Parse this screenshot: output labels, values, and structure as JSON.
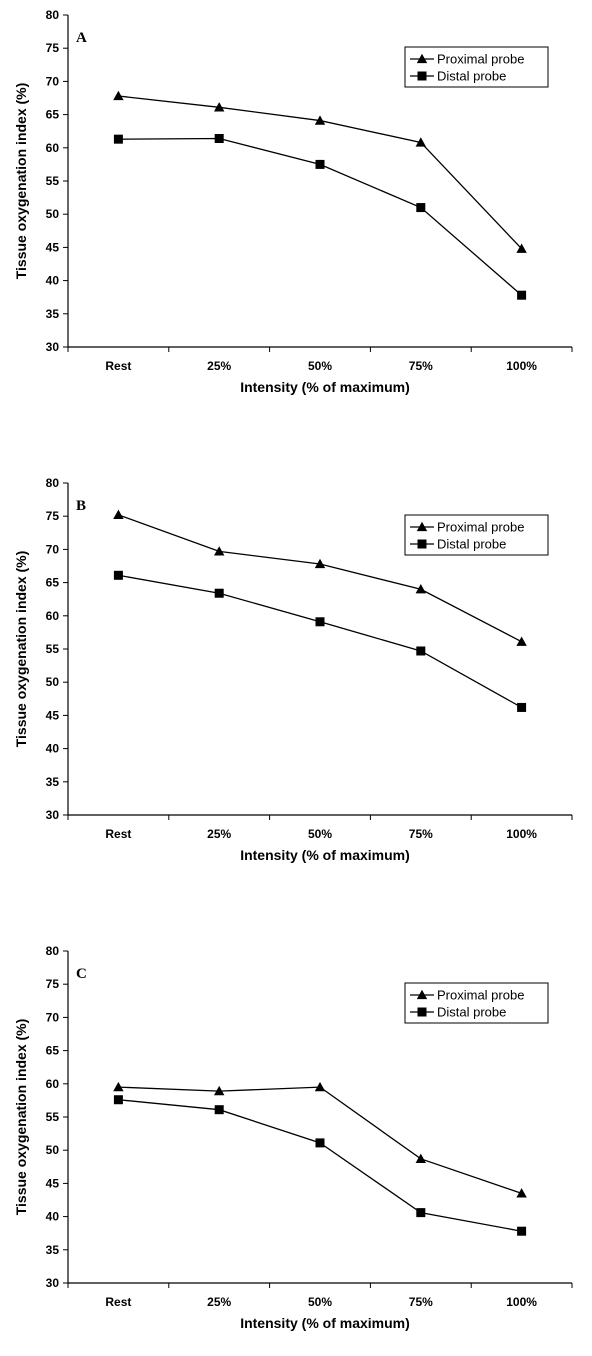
{
  "chart_data": [
    {
      "type": "line",
      "panel_label": "A",
      "categories": [
        "Rest",
        "25%",
        "50%",
        "75%",
        "100%"
      ],
      "series": [
        {
          "name": "Proximal probe",
          "marker": "triangle",
          "values": [
            67.8,
            66.1,
            64.1,
            60.8,
            44.8
          ]
        },
        {
          "name": "Distal probe",
          "marker": "square",
          "values": [
            61.3,
            61.4,
            57.5,
            51.0,
            37.8
          ]
        }
      ],
      "xlabel": "Intensity (% of maximum)",
      "ylabel": "Tissue oxygenation index (%)",
      "ylim": [
        30,
        80
      ],
      "yticks": [
        30,
        35,
        40,
        45,
        50,
        55,
        60,
        65,
        70,
        75,
        80
      ],
      "grid": false,
      "legend": "top-right"
    },
    {
      "type": "line",
      "panel_label": "B",
      "categories": [
        "Rest",
        "25%",
        "50%",
        "75%",
        "100%"
      ],
      "series": [
        {
          "name": "Proximal probe",
          "marker": "triangle",
          "values": [
            75.2,
            69.7,
            67.8,
            64.0,
            56.1
          ]
        },
        {
          "name": "Distal probe",
          "marker": "square",
          "values": [
            66.1,
            63.4,
            59.1,
            54.7,
            46.2
          ]
        }
      ],
      "xlabel": "Intensity (% of maximum)",
      "ylabel": "Tissue oxygenation index (%)",
      "ylim": [
        30,
        80
      ],
      "yticks": [
        30,
        35,
        40,
        45,
        50,
        55,
        60,
        65,
        70,
        75,
        80
      ],
      "grid": false,
      "legend": "top-right"
    },
    {
      "type": "line",
      "panel_label": "C",
      "categories": [
        "Rest",
        "25%",
        "50%",
        "75%",
        "100%"
      ],
      "series": [
        {
          "name": "Proximal probe",
          "marker": "triangle",
          "values": [
            59.5,
            58.9,
            59.5,
            48.7,
            43.5
          ]
        },
        {
          "name": "Distal probe",
          "marker": "square",
          "values": [
            57.6,
            56.1,
            51.1,
            40.6,
            37.8
          ]
        }
      ],
      "xlabel": "Intensity (% of maximum)",
      "ylabel": "Tissue oxygenation index (%)",
      "ylim": [
        30,
        80
      ],
      "yticks": [
        30,
        35,
        40,
        45,
        50,
        55,
        60,
        65,
        70,
        75,
        80
      ],
      "grid": false,
      "legend": "top-right"
    }
  ]
}
